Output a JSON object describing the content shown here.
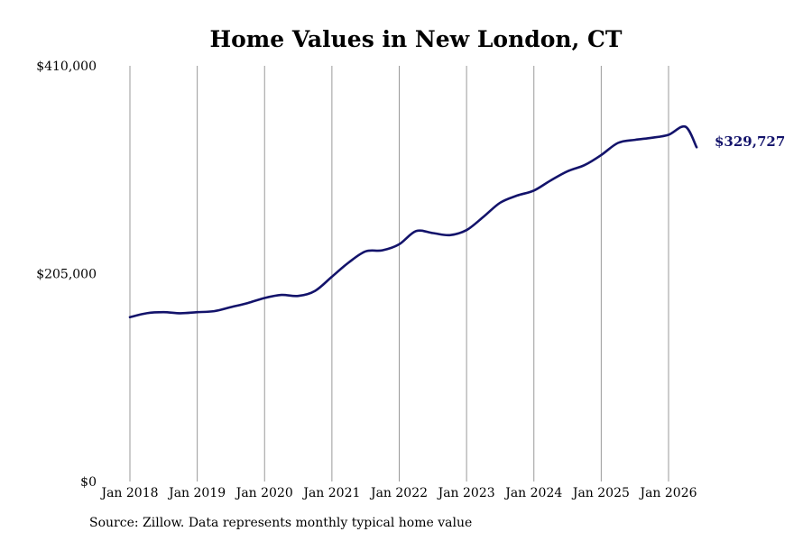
{
  "chart_data": {
    "type": "line",
    "title": "Home Values in New London, CT",
    "xlabel": "",
    "ylabel": "",
    "x_tick_labels": [
      "Jan 2018",
      "Jan 2019",
      "Jan 2020",
      "Jan 2021",
      "Jan 2022",
      "Jan 2023",
      "Jan 2024",
      "Jan 2025",
      "Jan 2026"
    ],
    "y_tick_labels": [
      "$0",
      "$205,000",
      "$410,000"
    ],
    "y_ticks": [
      0,
      205000,
      410000
    ],
    "ylim": [
      0,
      410000
    ],
    "xlim": [
      "2018-01",
      "2026-06"
    ],
    "grid": "vertical",
    "line_color": "#13136b",
    "end_label": "$329,727",
    "series": [
      {
        "x": [
          "2018-01",
          "2018-04",
          "2018-07",
          "2018-10",
          "2019-01",
          "2019-04",
          "2019-07",
          "2019-10",
          "2020-01",
          "2020-04",
          "2020-07",
          "2020-10",
          "2021-01",
          "2021-04",
          "2021-07",
          "2021-10",
          "2022-01",
          "2022-04",
          "2022-07",
          "2022-10",
          "2023-01",
          "2023-04",
          "2023-07",
          "2023-10",
          "2024-01",
          "2024-04",
          "2024-07",
          "2024-10",
          "2025-01",
          "2025-04",
          "2025-07",
          "2025-10",
          "2026-01",
          "2026-04",
          "2026-06"
        ],
        "values": [
          162000,
          166000,
          167000,
          166000,
          167000,
          168000,
          172000,
          176000,
          181000,
          184000,
          183000,
          188000,
          202000,
          216000,
          227000,
          228000,
          234000,
          247000,
          245000,
          243000,
          248000,
          261000,
          275000,
          282000,
          287000,
          297000,
          306000,
          312000,
          322000,
          334000,
          337000,
          339000,
          342000,
          350000,
          329727
        ]
      }
    ]
  },
  "source_note": "Source: Zillow. Data represents monthly typical home value"
}
